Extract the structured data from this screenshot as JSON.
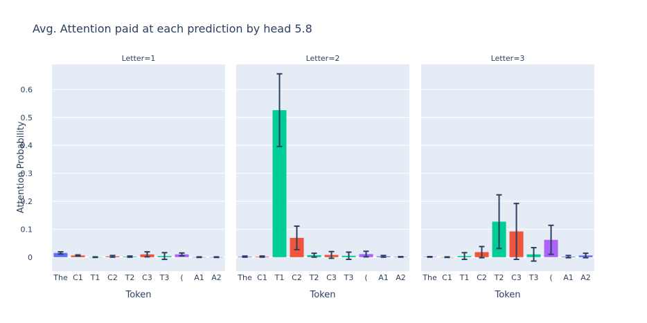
{
  "chart_data": {
    "type": "bar",
    "title": "Avg. Attention paid at each prediction by head 5.8",
    "xlabel": "Token",
    "ylabel": "Attention Probability",
    "ylim": [
      -0.05,
      0.69
    ],
    "yticks": [
      0,
      0.1,
      0.2,
      0.3,
      0.4,
      0.5,
      0.6
    ],
    "ytick_labels": [
      "0",
      "0.1",
      "0.2",
      "0.3",
      "0.4",
      "0.5",
      "0.6"
    ],
    "categories": [
      "The",
      "C1",
      "T1",
      "C2",
      "T2",
      "C3",
      "T3",
      "(",
      "A1",
      "A2"
    ],
    "bar_colors": [
      "#636efa",
      "#ef553b",
      "#00cc96",
      "#ef553b",
      "#00cc96",
      "#ef553b",
      "#00cc96",
      "#ab63fa",
      "#636efa",
      "#636efa"
    ],
    "error_bar_color": "#2a3f5f",
    "background_color": "#e5ecf6",
    "grid": true,
    "panels": [
      {
        "facet_label": "Letter=1",
        "values": [
          0.015,
          0.006,
          0.0,
          0.003,
          0.002,
          0.01,
          0.004,
          0.01,
          0.0,
          0.0
        ],
        "errors": [
          0.004,
          0.002,
          0.001,
          0.003,
          0.002,
          0.009,
          0.012,
          0.005,
          0.001,
          0.001
        ]
      },
      {
        "facet_label": "Letter=2",
        "values": [
          0.002,
          0.002,
          0.526,
          0.069,
          0.007,
          0.008,
          0.005,
          0.011,
          0.003,
          0.001
        ],
        "errors": [
          0.002,
          0.002,
          0.13,
          0.042,
          0.007,
          0.012,
          0.013,
          0.01,
          0.003,
          0.001
        ]
      },
      {
        "facet_label": "Letter=3",
        "values": [
          0.001,
          0.0,
          0.004,
          0.018,
          0.127,
          0.092,
          0.01,
          0.062,
          0.002,
          0.006
        ],
        "errors": [
          0.001,
          0.001,
          0.012,
          0.02,
          0.096,
          0.1,
          0.024,
          0.052,
          0.004,
          0.008
        ]
      }
    ]
  }
}
